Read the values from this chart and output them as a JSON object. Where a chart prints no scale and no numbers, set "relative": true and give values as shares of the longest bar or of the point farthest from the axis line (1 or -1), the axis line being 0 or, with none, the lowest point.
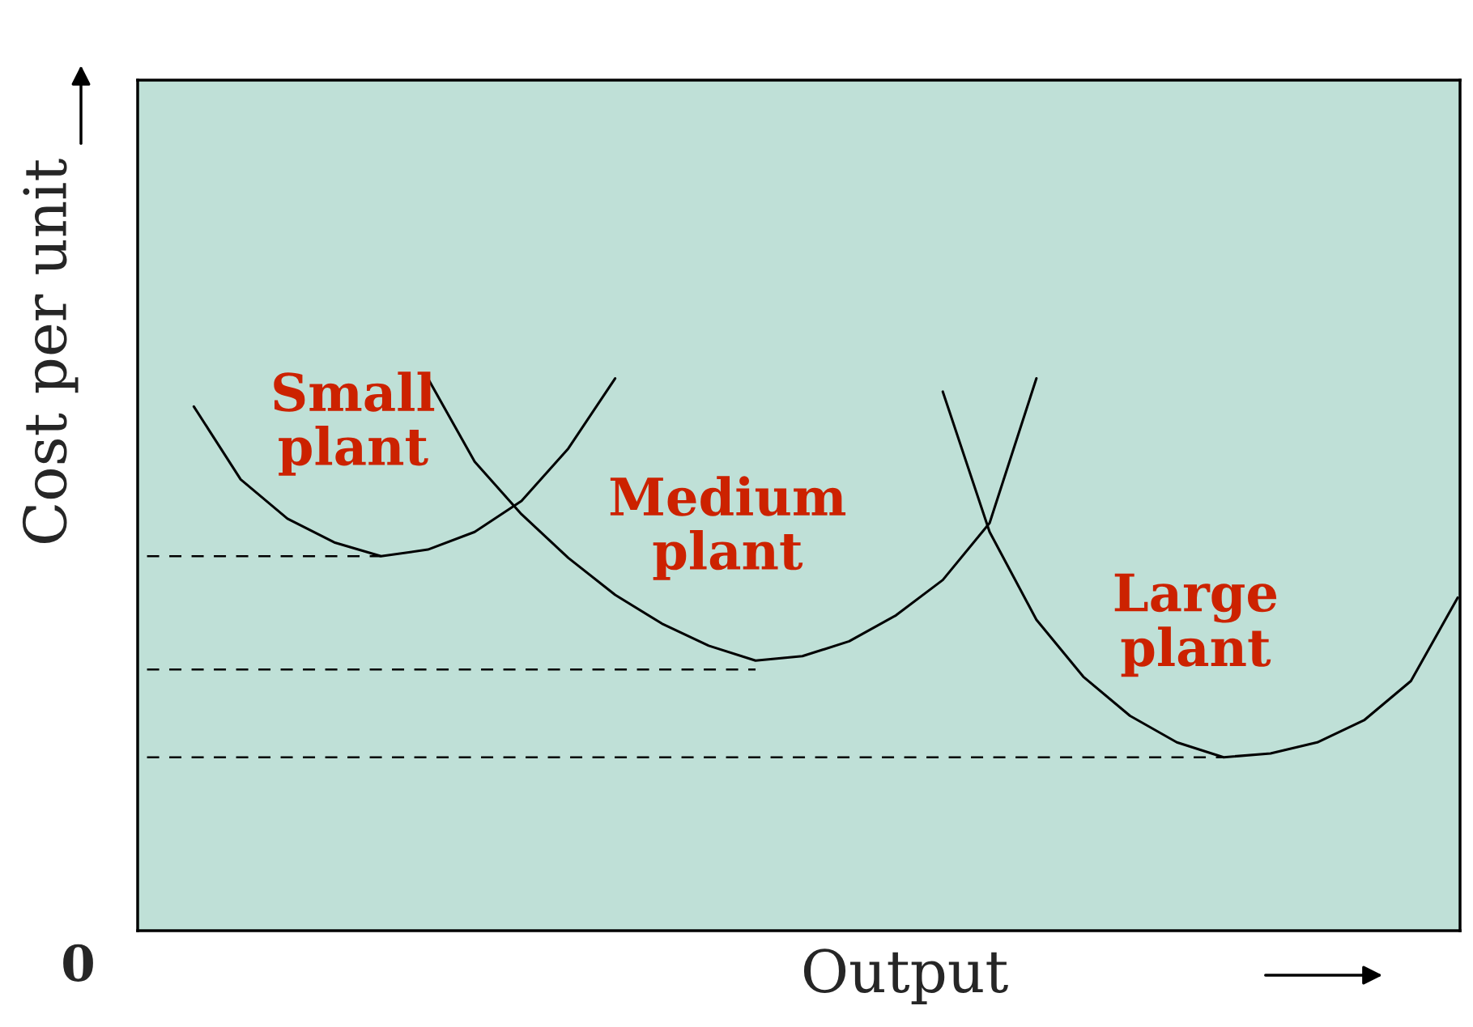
{
  "chart_data": {
    "type": "line",
    "relative": true,
    "xlabel": "Output",
    "ylabel": "Cost per unit",
    "annotations": [
      "0"
    ],
    "categories": [
      null,
      null,
      null,
      null,
      null,
      null,
      null,
      null,
      null,
      null,
      null,
      null,
      null,
      null,
      null,
      null,
      null,
      null,
      null,
      null,
      null,
      null,
      null,
      null,
      null,
      null,
      null,
      null,
      null
    ],
    "series": [
      {
        "name": "Small plant",
        "color": "#000000",
        "values": [
          null,
          0.949,
          0.817,
          0.746,
          0.703,
          0.678,
          0.69,
          0.722,
          0.778,
          0.873,
          1.0,
          null,
          null,
          null,
          null,
          null,
          null,
          null,
          null,
          null,
          null,
          null,
          null,
          null,
          null,
          null,
          null,
          null,
          null
        ]
      },
      {
        "name": "Medium plant",
        "color": "#000000",
        "values": [
          null,
          null,
          null,
          null,
          null,
          null,
          1.0,
          0.849,
          0.754,
          0.675,
          0.608,
          0.556,
          0.516,
          0.489,
          0.497,
          0.524,
          0.571,
          0.635,
          0.738,
          1.0,
          null,
          null,
          null,
          null,
          null,
          null,
          null,
          null,
          null
        ]
      },
      {
        "name": "Large plant",
        "color": "#000000",
        "values": [
          null,
          null,
          null,
          null,
          null,
          null,
          null,
          null,
          null,
          null,
          null,
          null,
          null,
          null,
          null,
          null,
          null,
          0.976,
          0.722,
          0.563,
          0.46,
          0.389,
          0.341,
          0.314,
          0.321,
          0.341,
          0.381,
          0.452,
          0.603
        ]
      },
      {
        "color": "#000000",
        "line_style": "dashed",
        "values": [
          0.678,
          0.678,
          0.678,
          0.678,
          0.678,
          0.678,
          null,
          null,
          null,
          null,
          null,
          null,
          null,
          null,
          null,
          null,
          null,
          null,
          null,
          null,
          null,
          null,
          null,
          null,
          null,
          null,
          null,
          null,
          null
        ]
      },
      {
        "color": "#000000",
        "line_style": "dashed",
        "values": [
          0.473,
          0.473,
          0.473,
          0.473,
          0.473,
          0.473,
          0.473,
          0.473,
          0.473,
          0.473,
          0.473,
          0.473,
          0.473,
          0.473,
          null,
          null,
          null,
          null,
          null,
          null,
          null,
          null,
          null,
          null,
          null,
          null,
          null,
          null,
          null
        ]
      },
      {
        "color": "#000000",
        "line_style": "dashed",
        "values": [
          0.314,
          0.314,
          0.314,
          0.314,
          0.314,
          0.314,
          0.314,
          0.314,
          0.314,
          0.314,
          0.314,
          0.314,
          0.314,
          0.314,
          0.314,
          0.314,
          0.314,
          0.314,
          0.314,
          0.314,
          0.314,
          0.314,
          0.314,
          0.314,
          null,
          null,
          null,
          null,
          null
        ]
      }
    ]
  }
}
